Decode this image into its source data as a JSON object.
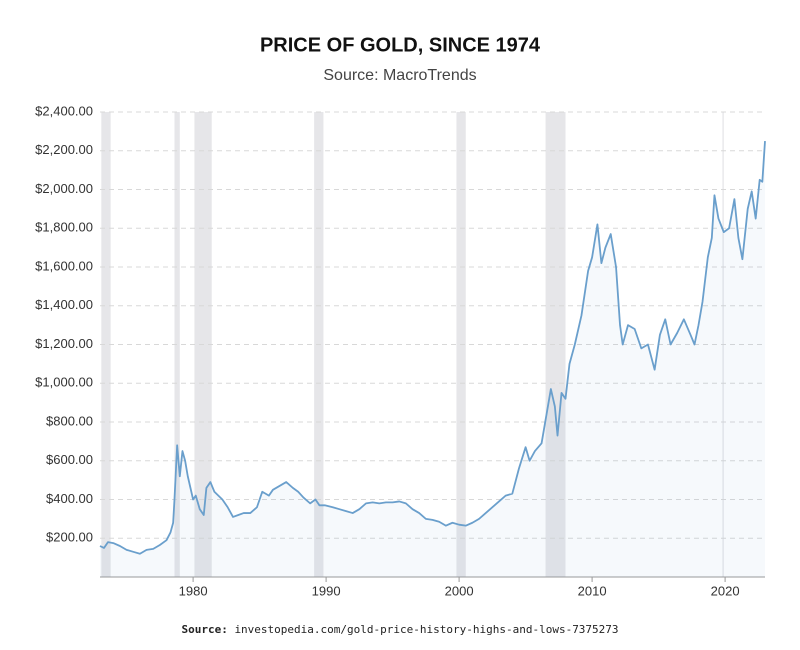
{
  "chart_data": {
    "type": "line",
    "title": "PRICE OF GOLD, SINCE 1974",
    "subtitle": "Source: MacroTrends",
    "x": [
      1973.0,
      1973.3,
      1973.6,
      1974.0,
      1974.5,
      1975.0,
      1975.5,
      1976.0,
      1976.5,
      1977.0,
      1977.5,
      1978.0,
      1978.3,
      1978.5,
      1978.6,
      1978.8,
      1979.0,
      1979.2,
      1979.4,
      1979.6,
      1980.0,
      1980.2,
      1980.5,
      1980.8,
      1981.0,
      1981.3,
      1981.6,
      1981.9,
      1982.2,
      1982.6,
      1983.0,
      1983.4,
      1983.8,
      1984.3,
      1984.8,
      1985.2,
      1985.7,
      1986.0,
      1986.5,
      1987.0,
      1987.5,
      1987.9,
      1988.3,
      1988.8,
      1989.2,
      1989.5,
      1989.9,
      1990.5,
      1991.0,
      1991.5,
      1992.0,
      1992.5,
      1993.0,
      1993.5,
      1994.0,
      1994.5,
      1995.0,
      1995.5,
      1996.0,
      1996.5,
      1997.0,
      1997.5,
      1998.0,
      1998.5,
      1999.0,
      1999.5,
      2000.0,
      2000.5,
      2001.0,
      2001.5,
      2002.0,
      2003.0,
      2003.5,
      2004.0,
      2004.5,
      2005.0,
      2005.3,
      2005.7,
      2006.2,
      2006.6,
      2006.9,
      2007.2,
      2007.4,
      2007.7,
      2008.0,
      2008.3,
      2008.7,
      2009.2,
      2009.7,
      2010.0,
      2010.4,
      2010.7,
      2011.0,
      2011.4,
      2011.8,
      2012.1,
      2012.3,
      2012.7,
      2013.2,
      2013.7,
      2014.2,
      2014.7,
      2015.1,
      2015.5,
      2015.9,
      2016.4,
      2016.9,
      2017.4,
      2017.7,
      2018.0,
      2018.3,
      2018.7,
      2019.0,
      2019.2,
      2019.5,
      2019.9,
      2020.3,
      2020.7,
      2021.0,
      2021.3,
      2021.7,
      2022.0,
      2022.3,
      2022.6,
      2022.8,
      2023.0
    ],
    "values": [
      160,
      150,
      180,
      175,
      160,
      140,
      130,
      120,
      140,
      145,
      165,
      190,
      230,
      280,
      400,
      680,
      520,
      650,
      600,
      520,
      400,
      420,
      350,
      320,
      460,
      490,
      440,
      420,
      400,
      360,
      310,
      320,
      330,
      330,
      360,
      440,
      420,
      450,
      470,
      490,
      460,
      440,
      410,
      380,
      400,
      370,
      370,
      360,
      350,
      340,
      330,
      350,
      380,
      385,
      380,
      385,
      385,
      390,
      380,
      350,
      330,
      300,
      295,
      285,
      265,
      280,
      270,
      265,
      280,
      300,
      330,
      390,
      420,
      430,
      560,
      670,
      600,
      650,
      690,
      850,
      970,
      880,
      730,
      950,
      920,
      1100,
      1200,
      1350,
      1580,
      1650,
      1820,
      1620,
      1700,
      1770,
      1600,
      1300,
      1200,
      1300,
      1280,
      1180,
      1200,
      1070,
      1250,
      1330,
      1200,
      1260,
      1330,
      1250,
      1200,
      1300,
      1420,
      1650,
      1750,
      1970,
      1850,
      1780,
      1800,
      1950,
      1750,
      1640,
      1900,
      1990,
      1850,
      2050,
      2040,
      2250
    ],
    "color": "#6a9fcc",
    "xlim": [
      1973,
      2023
    ],
    "xticks": [
      1980,
      1990,
      2000,
      2010,
      2020
    ],
    "ylim": [
      0,
      2400
    ],
    "yticks": [
      {
        "value": 200,
        "label": "$200.00"
      },
      {
        "value": 400,
        "label": "$400.00"
      },
      {
        "value": 600,
        "label": "$600.00"
      },
      {
        "value": 800,
        "label": "$800.00"
      },
      {
        "value": 1000,
        "label": "$1,000.00"
      },
      {
        "value": 1200,
        "label": "$1,200.00"
      },
      {
        "value": 1400,
        "label": "$1,400.00"
      },
      {
        "value": 1600,
        "label": "$1,600.00"
      },
      {
        "value": 1800,
        "label": "$1,800.00"
      },
      {
        "value": 2000,
        "label": "$2,000.00"
      },
      {
        "value": 2200,
        "label": "$2,200.00"
      },
      {
        "value": 2400,
        "label": "$2,400.00"
      }
    ],
    "grid": true,
    "shaded_periods": [
      [
        1973.1,
        1973.8
      ],
      [
        1978.6,
        1979.0
      ],
      [
        1980.1,
        1981.4
      ],
      [
        1989.1,
        1989.8
      ],
      [
        1999.8,
        2000.5
      ],
      [
        2006.5,
        2008.0
      ],
      [
        2019.8,
        2019.9
      ]
    ],
    "shade_color": "#e6e6e9"
  },
  "footer": {
    "label": "Source:",
    "text": "investopedia.com/gold-price-history-highs-and-lows-7375273"
  }
}
